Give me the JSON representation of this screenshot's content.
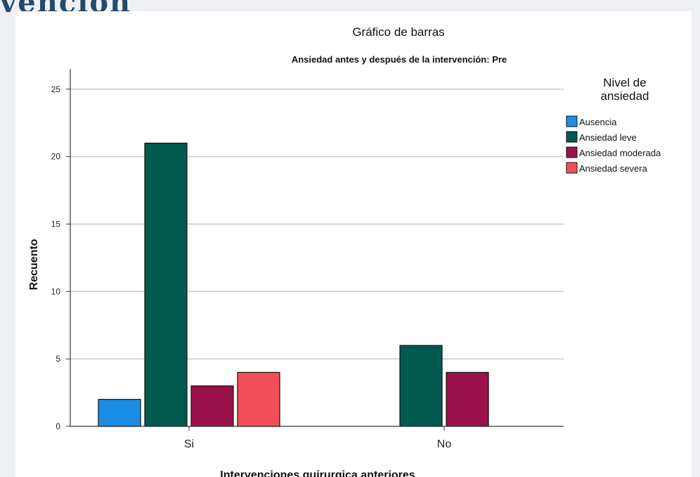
{
  "header_fragment": "vención",
  "chart_data": {
    "type": "bar",
    "title": "Gráfico de barras",
    "subtitle": "Ansiedad antes y después de la intervención: Pre",
    "xlabel": "Intervenciones quirurgica anteriores",
    "ylabel": "Recuento",
    "categories": [
      "Si",
      "No"
    ],
    "ylim": [
      0,
      26.5
    ],
    "yticks": [
      0,
      5,
      10,
      15,
      20,
      25
    ],
    "grid": true,
    "legend": {
      "title": [
        "Nivel de",
        "ansiedad"
      ],
      "placement": "right"
    },
    "series": [
      {
        "name": "Ausencia",
        "color": "#1a8ee6",
        "values": [
          2,
          null
        ]
      },
      {
        "name": "Ansiedad leve",
        "color": "#005a4e",
        "values": [
          21,
          6
        ]
      },
      {
        "name": "Ansiedad moderada",
        "color": "#9b1149",
        "values": [
          3,
          4
        ]
      },
      {
        "name": "Ansiedad severa",
        "color": "#f24e5a",
        "values": [
          4,
          null
        ]
      }
    ]
  }
}
